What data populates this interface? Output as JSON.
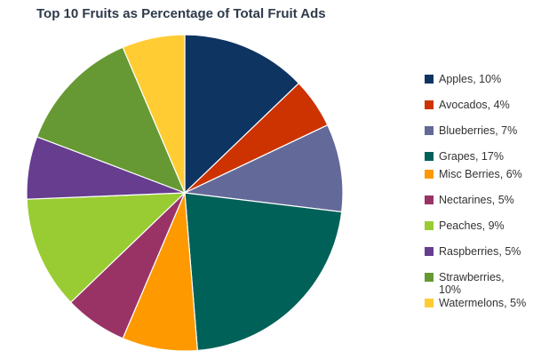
{
  "chart_data": {
    "type": "pie",
    "title": "Top 10 Fruits as Percentage of Total Fruit Ads",
    "legend_position": "right",
    "slices": [
      {
        "label": "Apples, 10%",
        "name": "Apples",
        "value": 10,
        "color": "#0e3462"
      },
      {
        "label": "Avocados, 4%",
        "name": "Avocados",
        "value": 4,
        "color": "#cc3300"
      },
      {
        "label": "Blueberries, 7%",
        "name": "Blueberries",
        "value": 7,
        "color": "#636999"
      },
      {
        "label": "Grapes, 17%",
        "name": "Grapes",
        "value": 17,
        "color": "#006159"
      },
      {
        "label": "Misc Berries, 6%",
        "name": "Misc Berries",
        "value": 6,
        "color": "#ff9900"
      },
      {
        "label": "Nectarines, 5%",
        "name": "Nectarines",
        "value": 5,
        "color": "#993366"
      },
      {
        "label": "Peaches, 9%",
        "name": "Peaches",
        "value": 9,
        "color": "#99cc33"
      },
      {
        "label": "Raspberries, 5%",
        "name": "Raspberries",
        "value": 5,
        "color": "#663d8f"
      },
      {
        "label": "Strawberries, 10%",
        "name": "Strawberries",
        "value": 10,
        "color": "#669933"
      },
      {
        "label": "Watermelons, 5%",
        "name": "Watermelons",
        "value": 5,
        "color": "#ffcc33"
      }
    ]
  }
}
